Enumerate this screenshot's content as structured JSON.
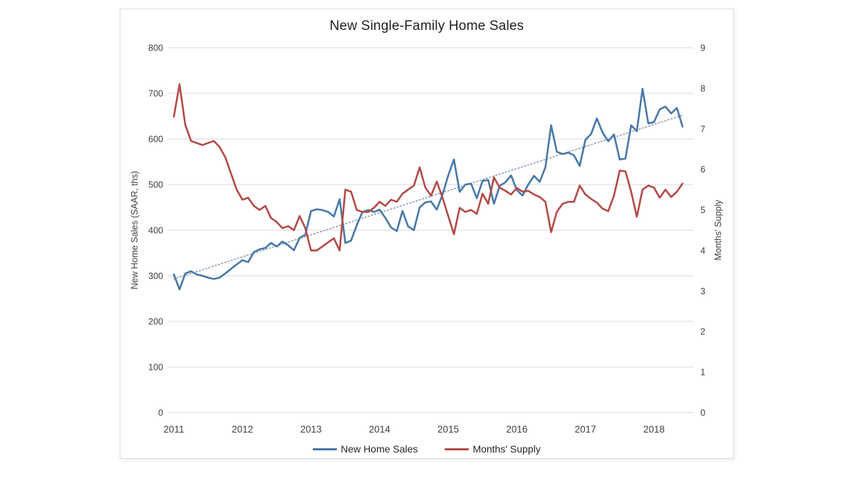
{
  "chart_data": {
    "type": "line",
    "title": "New Single-Family Home Sales",
    "grid": true,
    "left_axis": {
      "label": "New Home Sales (SAAR, ths)",
      "min": 0,
      "max": 800,
      "ticks": [
        "0",
        "100",
        "200",
        "300",
        "400",
        "500",
        "600",
        "700",
        "800"
      ]
    },
    "right_axis": {
      "label": "Months' Supply",
      "min": 0,
      "max": 9,
      "ticks": [
        "0",
        "1",
        "2",
        "3",
        "4",
        "5",
        "6",
        "7",
        "8",
        "9"
      ]
    },
    "x_axis": {
      "years": [
        "2011",
        "2012",
        "2013",
        "2014",
        "2015",
        "2016",
        "2017",
        "2018"
      ],
      "start_month": "2011-01",
      "end_month": "2018-06",
      "points_per_year": 12
    },
    "colors": {
      "sales": "#4878A8",
      "supply": "#B34A47",
      "trendline": "#8A99AE",
      "gridline": "#D9D9D9",
      "axis_text": "#3F3F3F"
    },
    "series": [
      {
        "name": "New Home Sales",
        "axis": "left",
        "color_key": "sales",
        "values": [
          303,
          270,
          305,
          310,
          303,
          300,
          296,
          293,
          296,
          305,
          315,
          325,
          334,
          330,
          352,
          358,
          361,
          372,
          364,
          375,
          367,
          356,
          383,
          390,
          442,
          446,
          444,
          440,
          430,
          468,
          372,
          377,
          411,
          440,
          444,
          440,
          445,
          427,
          406,
          398,
          442,
          408,
          400,
          450,
          461,
          463,
          445,
          478,
          520,
          555,
          484,
          500,
          502,
          470,
          508,
          510,
          458,
          497,
          505,
          520,
          488,
          476,
          500,
          519,
          506,
          538,
          630,
          572,
          567,
          570,
          564,
          541,
          598,
          611,
          645,
          614,
          595,
          610,
          555,
          557,
          630,
          617,
          710,
          634,
          637,
          665,
          671,
          656,
          668,
          627
        ]
      },
      {
        "name": "Months' Supply",
        "axis": "right",
        "color_key": "supply",
        "values": [
          7.3,
          8.1,
          7.1,
          6.7,
          6.65,
          6.6,
          6.65,
          6.7,
          6.55,
          6.3,
          5.9,
          5.5,
          5.25,
          5.3,
          5.1,
          5.0,
          5.1,
          4.8,
          4.7,
          4.55,
          4.6,
          4.5,
          4.85,
          4.55,
          4.0,
          4.0,
          4.1,
          4.2,
          4.3,
          4.0,
          5.5,
          5.45,
          5.0,
          4.95,
          4.95,
          5.05,
          5.2,
          5.1,
          5.25,
          5.2,
          5.4,
          5.5,
          5.6,
          6.05,
          5.55,
          5.35,
          5.7,
          5.3,
          4.85,
          4.4,
          5.05,
          4.95,
          5.0,
          4.9,
          5.4,
          5.15,
          5.8,
          5.55,
          5.47,
          5.38,
          5.54,
          5.45,
          5.47,
          5.38,
          5.32,
          5.2,
          4.45,
          4.95,
          5.15,
          5.2,
          5.2,
          5.6,
          5.38,
          5.27,
          5.18,
          5.03,
          4.97,
          5.35,
          5.97,
          5.95,
          5.45,
          4.83,
          5.5,
          5.6,
          5.55,
          5.3,
          5.5,
          5.32,
          5.45,
          5.65
        ]
      }
    ],
    "trendline": {
      "axis": "left",
      "style": "dotted",
      "start_value": 293,
      "end_value": 652
    },
    "legend": {
      "position": "bottom",
      "entries": [
        {
          "label": "New Home Sales",
          "color_key": "sales"
        },
        {
          "label": "Months' Supply",
          "color_key": "supply"
        }
      ]
    }
  }
}
